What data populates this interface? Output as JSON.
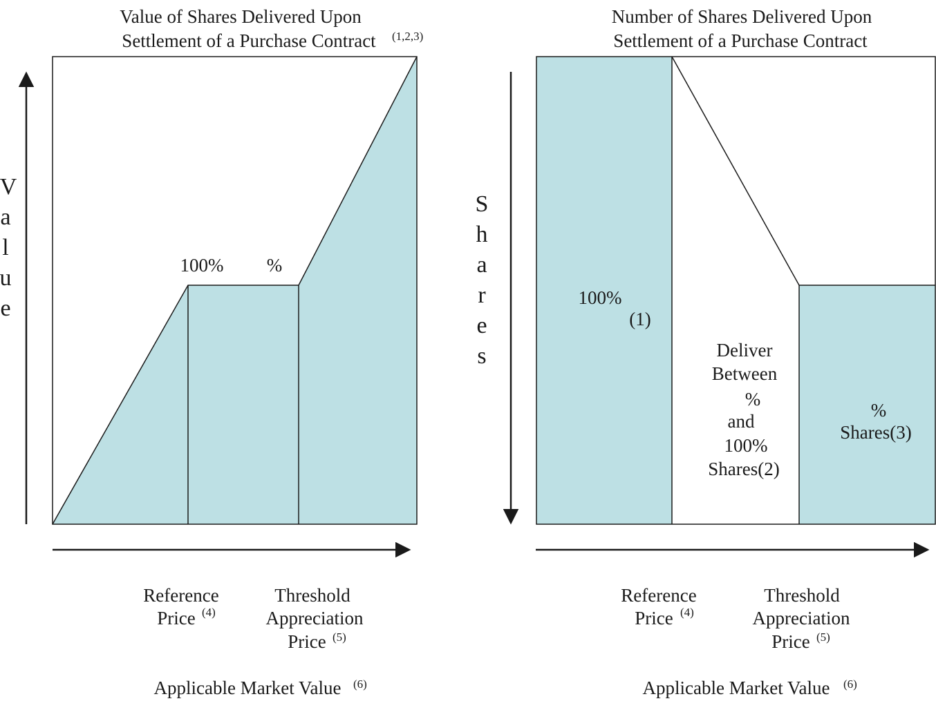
{
  "colors": {
    "fill": "#bde0e4",
    "stroke": "#1a1a1a"
  },
  "left_chart": {
    "title_line1": "Value of Shares Delivered Upon",
    "title_line2": "Settlement of a Purchase Contract",
    "title_sup": "(1,2,3)",
    "y_axis_label": [
      "V",
      "a",
      "l",
      "u",
      "e"
    ],
    "label_100": "100%",
    "label_pct": "%",
    "x_tick_1": {
      "line1": "Reference",
      "line2": "Price",
      "sup": "(4)"
    },
    "x_tick_2": {
      "line1": "Threshold",
      "line2": "Appreciation",
      "line3": "Price",
      "sup": "(5)"
    },
    "x_axis_label": "Applicable Market Value",
    "x_axis_sup": "(6)"
  },
  "right_chart": {
    "title_line1": "Number of Shares Delivered Upon",
    "title_line2": "Settlement of a Purchase Contract",
    "y_axis_label": [
      "S",
      "h",
      "a",
      "r",
      "e",
      "s"
    ],
    "region1": {
      "line1": "100%",
      "line2": "(1)"
    },
    "region2": {
      "line1": "Deliver",
      "line2": "Between",
      "line3": "%",
      "line4": "and",
      "line5": "100%",
      "line6": "Shares(2)"
    },
    "region3": {
      "line1": "%",
      "line2": "Shares(3)"
    },
    "x_tick_1": {
      "line1": "Reference",
      "line2": "Price",
      "sup": "(4)"
    },
    "x_tick_2": {
      "line1": "Threshold",
      "line2": "Appreciation",
      "line3": "Price",
      "sup": "(5)"
    },
    "x_axis_label": "Applicable Market Value",
    "x_axis_sup": "(6)"
  }
}
